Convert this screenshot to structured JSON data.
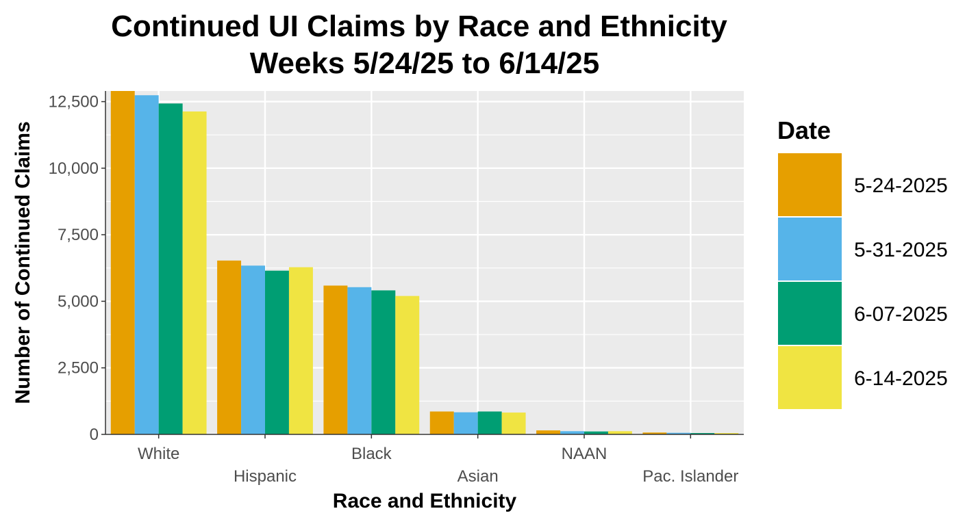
{
  "chart_data": {
    "type": "bar",
    "title": "Continued UI Claims by Race and Ethnicity",
    "subtitle": "Weeks 5/24/25 to 6/14/25",
    "xlabel": "Race and Ethnicity",
    "ylabel": "Number of Continued Claims",
    "categories": [
      "White",
      "Hispanic",
      "Black",
      "Asian",
      "NAAN",
      "Pac. Islander"
    ],
    "ylim": [
      0,
      12900
    ],
    "yticks": [
      0,
      2500,
      5000,
      7500,
      10000,
      12500
    ],
    "ytick_labels": [
      "0",
      "2,500",
      "5,000",
      "7,500",
      "10,000",
      "12,500"
    ],
    "grid": true,
    "legend": {
      "title": "Date",
      "position": "right"
    },
    "series": [
      {
        "name": "5-24-2025",
        "color": "#E69F00",
        "values": [
          12950,
          6530,
          5590,
          860,
          150,
          70
        ]
      },
      {
        "name": "5-31-2025",
        "color": "#56B4E9",
        "values": [
          12740,
          6340,
          5530,
          830,
          120,
          60
        ]
      },
      {
        "name": "6-07-2025",
        "color": "#009E73",
        "values": [
          12430,
          6150,
          5410,
          860,
          110,
          50
        ]
      },
      {
        "name": "6-14-2025",
        "color": "#F0E442",
        "values": [
          12130,
          6280,
          5200,
          820,
          120,
          50
        ]
      }
    ]
  }
}
